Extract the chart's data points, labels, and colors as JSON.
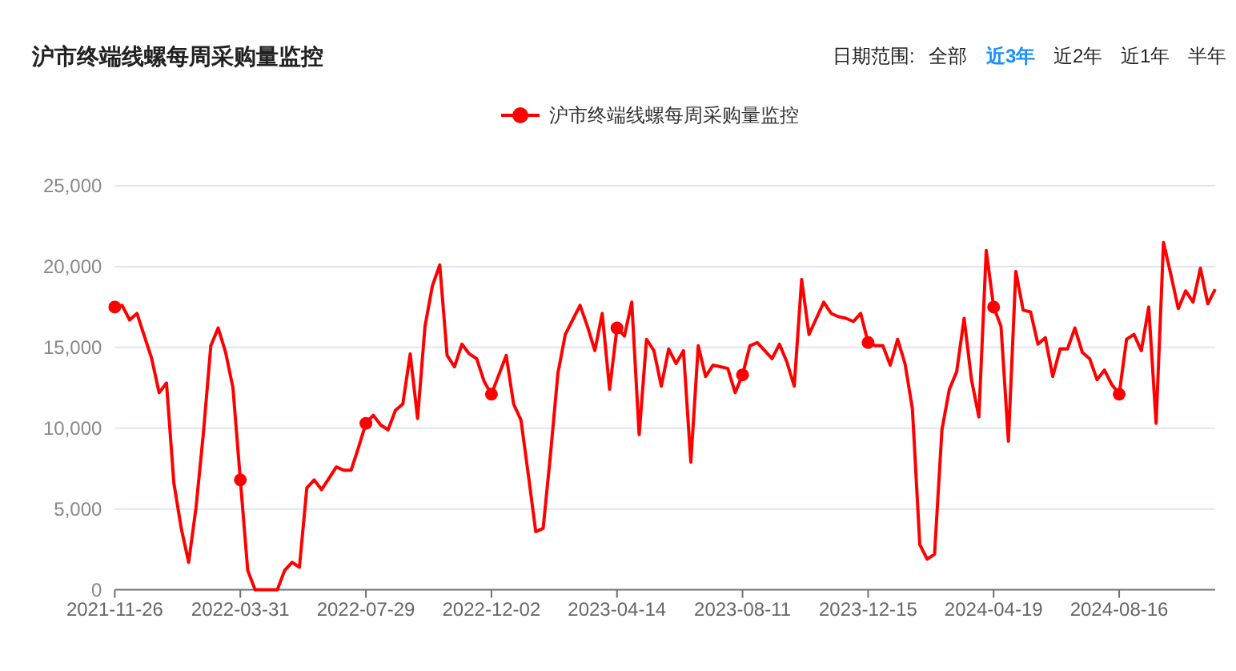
{
  "chart_data": {
    "type": "line",
    "title": "沪市终端线螺每周采购量监控",
    "annotations": [
      "日期范围:",
      "全部",
      "近3年",
      "近2年",
      "近1年",
      "半年"
    ],
    "categories": [
      "2021-11-26",
      null,
      null,
      null,
      null,
      null,
      null,
      null,
      null,
      null,
      null,
      null,
      null,
      null,
      null,
      null,
      null,
      "2022-03-31",
      null,
      null,
      null,
      null,
      null,
      null,
      null,
      null,
      null,
      null,
      null,
      null,
      null,
      null,
      null,
      null,
      "2022-07-29",
      null,
      null,
      null,
      null,
      null,
      null,
      null,
      null,
      null,
      null,
      null,
      null,
      null,
      null,
      null,
      null,
      "2022-12-02",
      null,
      null,
      null,
      null,
      null,
      null,
      null,
      null,
      null,
      null,
      null,
      null,
      null,
      null,
      null,
      null,
      "2023-04-14",
      null,
      null,
      null,
      null,
      null,
      null,
      null,
      null,
      null,
      null,
      null,
      null,
      null,
      null,
      null,
      null,
      "2023-08-11",
      null,
      null,
      null,
      null,
      null,
      null,
      null,
      null,
      null,
      null,
      null,
      null,
      null,
      null,
      null,
      null,
      "2023-12-15",
      null,
      null,
      null,
      null,
      null,
      null,
      null,
      null,
      null,
      null,
      null,
      null,
      null,
      null,
      null,
      null,
      "2024-04-19",
      null,
      null,
      null,
      null,
      null,
      null,
      null,
      null,
      null,
      null,
      null,
      null,
      null,
      null,
      null,
      null,
      "2024-08-16",
      null,
      null,
      null,
      null,
      null,
      null,
      null,
      null,
      null,
      null,
      null,
      null,
      null
    ],
    "series": [
      {
        "name": "沪市终端线螺每周采购量监控",
        "color": "#ff0000",
        "values": [
          17500,
          17600,
          16700,
          17100,
          15700,
          14300,
          12200,
          12800,
          6600,
          3800,
          1700,
          5100,
          9700,
          15100,
          16200,
          14700,
          12500,
          6800,
          1200,
          0,
          0,
          0,
          0,
          1200,
          1700,
          1400,
          6300,
          6800,
          6200,
          6900,
          7600,
          7400,
          7400,
          8800,
          10300,
          10800,
          10200,
          9900,
          11100,
          11500,
          14600,
          10600,
          16300,
          18800,
          20100,
          14500,
          13800,
          15200,
          14600,
          14300,
          12900,
          12100,
          13300,
          14500,
          11500,
          10500,
          7100,
          3600,
          3800,
          8400,
          13400,
          15800,
          16700,
          17600,
          16300,
          14800,
          17100,
          12400,
          16200,
          15700,
          17800,
          9600,
          15500,
          14800,
          12600,
          14900,
          14000,
          14800,
          7900,
          15100,
          13200,
          13900,
          13800,
          13700,
          12200,
          13300,
          15100,
          15300,
          14800,
          14300,
          15200,
          14100,
          12600,
          19200,
          15800,
          16800,
          17800,
          17100,
          16900,
          16800,
          16600,
          17100,
          15300,
          15100,
          15100,
          13900,
          15500,
          14000,
          11200,
          2800,
          1900,
          2200,
          9900,
          12400,
          13500,
          16800,
          13000,
          10700,
          21000,
          17500,
          16300,
          9200,
          19700,
          17300,
          17200,
          15200,
          15600,
          13200,
          14900,
          14900,
          16200,
          14700,
          14300,
          13000,
          13600,
          12700,
          12100,
          15500,
          15800,
          14800,
          17500,
          10300,
          21500,
          19500,
          17400,
          18500,
          17800,
          19900,
          17700,
          18600
        ]
      }
    ],
    "ylim": [
      0,
      25000
    ],
    "yticks": [
      {
        "value": 0,
        "label": "0"
      },
      {
        "value": 5000,
        "label": "5,000"
      },
      {
        "value": 10000,
        "label": "10,000"
      },
      {
        "value": 15000,
        "label": "15,000"
      },
      {
        "value": 20000,
        "label": "20,000"
      },
      {
        "value": 25000,
        "label": "25,000"
      }
    ],
    "grid": "y",
    "legend": "top",
    "line_style": "solid"
  }
}
